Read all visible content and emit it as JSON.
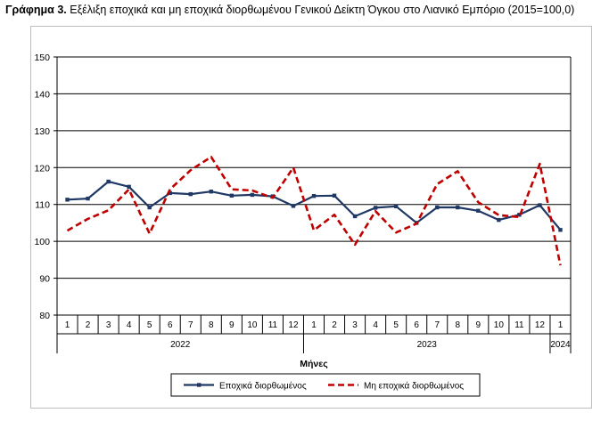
{
  "title": {
    "prefix": "Γράφημα 3.",
    "text": "Εξέλιξη εποχικά και μη εποχικά διορθωμένου Γενικού Δείκτη Όγκου στο Λιανικό Εμπόριο (2015=100,0)"
  },
  "chart_data": {
    "type": "line",
    "title": "Γράφημα 3. Εξέλιξη εποχικά και μη εποχικά διορθωμένου Γενικού Δείκτη Όγκου στο Λιανικό Εμπόριο (2015=100,0)",
    "xlabel": "Μήνες",
    "ylabel": "",
    "ylim": [
      80,
      150
    ],
    "yticks": [
      "80",
      "90",
      "100",
      "110",
      "120",
      "130",
      "140",
      "150"
    ],
    "categories": [
      "1",
      "2",
      "3",
      "4",
      "5",
      "6",
      "7",
      "8",
      "9",
      "10",
      "11",
      "12",
      "1",
      "2",
      "3",
      "4",
      "5",
      "6",
      "7",
      "8",
      "9",
      "10",
      "11",
      "12",
      "1"
    ],
    "year_groups": [
      {
        "label": "2022",
        "start": 0,
        "end": 11
      },
      {
        "label": "2023",
        "start": 12,
        "end": 23
      },
      {
        "label": "2024",
        "start": 24,
        "end": 24
      }
    ],
    "grid": true,
    "legend_position": "bottom",
    "series": [
      {
        "name": "Εποχικά διορθωμένος",
        "color": "#1f3864",
        "style": "solid-marker",
        "values": [
          111.3,
          111.6,
          116.2,
          114.8,
          109.2,
          113.1,
          112.8,
          113.5,
          112.4,
          112.6,
          112.2,
          109.6,
          112.3,
          112.4,
          106.8,
          109.1,
          109.5,
          105.0,
          109.2,
          109.2,
          108.3,
          105.8,
          107.2,
          109.8,
          103.1
        ]
      },
      {
        "name": "Μη εποχικά διορθωμένος",
        "color": "#c00000",
        "style": "dashed",
        "values": [
          102.9,
          106.1,
          108.4,
          114.1,
          102.1,
          114.1,
          119.3,
          122.9,
          114.1,
          113.8,
          111.8,
          120.0,
          103.0,
          107.2,
          99.1,
          108.2,
          102.4,
          104.8,
          115.5,
          119.0,
          110.6,
          107.1,
          106.6,
          121.0,
          93.5
        ]
      }
    ]
  }
}
